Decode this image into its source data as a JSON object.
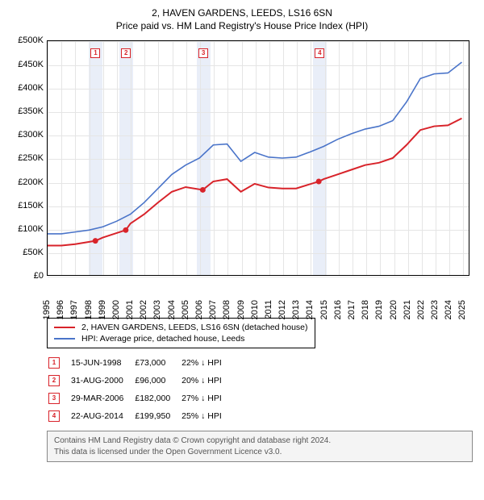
{
  "title_line1": "2, HAVEN GARDENS, LEEDS, LS16 6SN",
  "title_line2": "Price paid vs. HM Land Registry's House Price Index (HPI)",
  "chart": {
    "type": "line",
    "background_color": "#ffffff",
    "band_color": "#e9eef8",
    "grid_color": "#e5e5e5",
    "axis_color": "#000000",
    "x_years": [
      1995,
      1996,
      1997,
      1998,
      1999,
      2000,
      2001,
      2002,
      2003,
      2004,
      2005,
      2006,
      2007,
      2008,
      2009,
      2010,
      2011,
      2012,
      2013,
      2014,
      2015,
      2016,
      2017,
      2018,
      2019,
      2020,
      2021,
      2022,
      2023,
      2024,
      2025
    ],
    "xlim": [
      1995,
      2025.5
    ],
    "ylim": [
      0,
      500000
    ],
    "ytick_step": 50000,
    "y_tick_labels": [
      "£0",
      "£50K",
      "£100K",
      "£150K",
      "£200K",
      "£250K",
      "£300K",
      "£350K",
      "£400K",
      "£450K",
      "£500K"
    ],
    "label_fontsize": 11,
    "series": [
      {
        "name": "2, HAVEN GARDENS, LEEDS, LS16 6SN (detached house)",
        "color": "#d8232a",
        "line_width": 2,
        "data": [
          [
            1995,
            63000
          ],
          [
            1996,
            63000
          ],
          [
            1997,
            66000
          ],
          [
            1998.46,
            73000
          ],
          [
            1999,
            80000
          ],
          [
            2000.66,
            96000
          ],
          [
            2001,
            110000
          ],
          [
            2002,
            130000
          ],
          [
            2003,
            155000
          ],
          [
            2004,
            178000
          ],
          [
            2005,
            188000
          ],
          [
            2006.24,
            182000
          ],
          [
            2007,
            200000
          ],
          [
            2008,
            205000
          ],
          [
            2009,
            178000
          ],
          [
            2010,
            195000
          ],
          [
            2011,
            187000
          ],
          [
            2012,
            185000
          ],
          [
            2013,
            185000
          ],
          [
            2014.64,
            199950
          ],
          [
            2015,
            205000
          ],
          [
            2016,
            215000
          ],
          [
            2017,
            225000
          ],
          [
            2018,
            235000
          ],
          [
            2019,
            240000
          ],
          [
            2020,
            250000
          ],
          [
            2021,
            278000
          ],
          [
            2022,
            310000
          ],
          [
            2023,
            318000
          ],
          [
            2024,
            320000
          ],
          [
            2025,
            335000
          ]
        ]
      },
      {
        "name": "HPI: Average price, detached house, Leeds",
        "color": "#4a74c9",
        "line_width": 1.6,
        "data": [
          [
            1995,
            88000
          ],
          [
            1996,
            88000
          ],
          [
            1997,
            92000
          ],
          [
            1998,
            96000
          ],
          [
            1999,
            103000
          ],
          [
            2000,
            115000
          ],
          [
            2001,
            130000
          ],
          [
            2002,
            155000
          ],
          [
            2003,
            185000
          ],
          [
            2004,
            215000
          ],
          [
            2005,
            235000
          ],
          [
            2006,
            250000
          ],
          [
            2007,
            278000
          ],
          [
            2008,
            280000
          ],
          [
            2009,
            243000
          ],
          [
            2010,
            262000
          ],
          [
            2011,
            252000
          ],
          [
            2012,
            250000
          ],
          [
            2013,
            252000
          ],
          [
            2014,
            263000
          ],
          [
            2015,
            275000
          ],
          [
            2016,
            290000
          ],
          [
            2017,
            302000
          ],
          [
            2018,
            312000
          ],
          [
            2019,
            318000
          ],
          [
            2020,
            330000
          ],
          [
            2021,
            370000
          ],
          [
            2022,
            420000
          ],
          [
            2023,
            430000
          ],
          [
            2024,
            432000
          ],
          [
            2025,
            455000
          ]
        ]
      }
    ],
    "sale_markers": [
      {
        "n": "1",
        "x": 1998.46,
        "y_top": 475000,
        "point_y": 73000,
        "color": "#d8232a"
      },
      {
        "n": "2",
        "x": 2000.66,
        "y_top": 475000,
        "point_y": 96000,
        "color": "#d8232a"
      },
      {
        "n": "3",
        "x": 2006.24,
        "y_top": 475000,
        "point_y": 182000,
        "color": "#d8232a"
      },
      {
        "n": "4",
        "x": 2014.64,
        "y_top": 475000,
        "point_y": 199950,
        "color": "#d8232a"
      }
    ]
  },
  "legend": {
    "items": [
      {
        "label": "2, HAVEN GARDENS, LEEDS, LS16 6SN (detached house)",
        "color": "#d8232a"
      },
      {
        "label": "HPI: Average price, detached house, Leeds",
        "color": "#4a74c9"
      }
    ]
  },
  "sales": [
    {
      "n": "1",
      "date": "15-JUN-1998",
      "price": "£73,000",
      "delta": "22% ↓ HPI",
      "color": "#d8232a"
    },
    {
      "n": "2",
      "date": "31-AUG-2000",
      "price": "£96,000",
      "delta": "20% ↓ HPI",
      "color": "#d8232a"
    },
    {
      "n": "3",
      "date": "29-MAR-2006",
      "price": "£182,000",
      "delta": "27% ↓ HPI",
      "color": "#d8232a"
    },
    {
      "n": "4",
      "date": "22-AUG-2014",
      "price": "£199,950",
      "delta": "25% ↓ HPI",
      "color": "#d8232a"
    }
  ],
  "footer_line1": "Contains HM Land Registry data © Crown copyright and database right 2024.",
  "footer_line2": "This data is licensed under the Open Government Licence v3.0."
}
